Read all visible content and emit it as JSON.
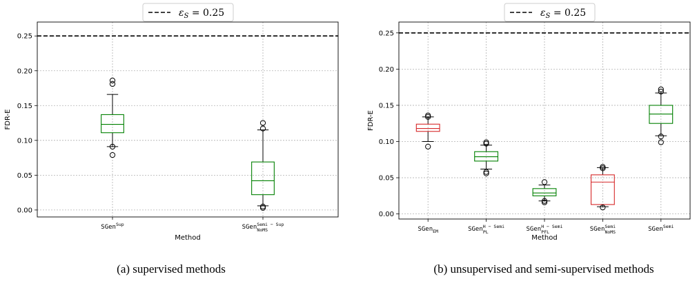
{
  "chart_data": [
    {
      "type": "box",
      "ylabel": "FDR-E",
      "xlabel": "Method",
      "ylim": [
        -0.01,
        0.27
      ],
      "yticks": [
        "0.00",
        "0.05",
        "0.10",
        "0.15",
        "0.20",
        "0.25"
      ],
      "ytick_values": [
        0,
        0.05,
        0.1,
        0.15,
        0.2,
        0.25
      ],
      "grid": true,
      "reference_line": {
        "y": 0.25,
        "style": "dashed",
        "color": "#000000"
      },
      "legend": {
        "placement": "top-center",
        "line_style": "dashed",
        "label_symbol": "ε",
        "label_sub": "S",
        "label_value": " = 0.25"
      },
      "caption": "(a)  supervised methods",
      "categories": [
        {
          "base": "SGen",
          "sup": "Sup",
          "sub": ""
        },
        {
          "base": "SGen",
          "sup": "Semi − Sup",
          "sub": "NoMS"
        }
      ],
      "boxes": [
        {
          "whislo": 0.091,
          "q1": 0.111,
          "med": 0.123,
          "q3": 0.137,
          "whishi": 0.166,
          "fliers": [
            0.186,
            0.181,
            0.079,
            0.091
          ],
          "color": "#008000"
        },
        {
          "whislo": 0.006,
          "q1": 0.022,
          "med": 0.042,
          "q3": 0.069,
          "whishi": 0.115,
          "fliers": [
            0.125,
            0.117,
            0.005,
            0.003
          ],
          "color": "#008000"
        }
      ]
    },
    {
      "type": "box",
      "ylabel": "FDR-E",
      "xlabel": "Method",
      "ylim": [
        -0.007,
        0.265
      ],
      "yticks": [
        "0.00",
        "0.05",
        "0.10",
        "0.15",
        "0.20",
        "0.25"
      ],
      "ytick_values": [
        0,
        0.05,
        0.1,
        0.15,
        0.2,
        0.25
      ],
      "grid": true,
      "reference_line": {
        "y": 0.25,
        "style": "dashed",
        "color": "#000000"
      },
      "legend": {
        "placement": "top-center",
        "line_style": "dashed",
        "label_symbol": "ε",
        "label_sub": "S",
        "label_value": " = 0.25"
      },
      "caption": "(b)  unsupervised and semi-supervised methods",
      "categories": [
        {
          "base": "SGen",
          "sup": "",
          "sub": "EM"
        },
        {
          "base": "SGen",
          "sup": "H − Semi",
          "sub": "PL"
        },
        {
          "base": "SGen",
          "sup": "H − Semi",
          "sub": "PFL"
        },
        {
          "base": "SGen",
          "sup": "Semi",
          "sub": "NoMS"
        },
        {
          "base": "SGen",
          "sup": "Semi",
          "sub": ""
        }
      ],
      "boxes": [
        {
          "whislo": 0.1,
          "q1": 0.114,
          "med": 0.118,
          "q3": 0.124,
          "whishi": 0.134,
          "fliers": [
            0.136,
            0.134,
            0.093
          ],
          "color": "#d62728"
        },
        {
          "whislo": 0.062,
          "q1": 0.073,
          "med": 0.079,
          "q3": 0.086,
          "whishi": 0.095,
          "fliers": [
            0.099,
            0.097,
            0.058,
            0.056
          ],
          "color": "#008000"
        },
        {
          "whislo": 0.018,
          "q1": 0.025,
          "med": 0.029,
          "q3": 0.035,
          "whishi": 0.04,
          "fliers": [
            0.044,
            0.018,
            0.016
          ],
          "color": "#008000"
        },
        {
          "whislo": 0.01,
          "q1": 0.013,
          "med": 0.044,
          "q3": 0.054,
          "whishi": 0.064,
          "fliers": [
            0.065,
            0.063,
            0.009
          ],
          "color": "#d62728"
        },
        {
          "whislo": 0.108,
          "q1": 0.125,
          "med": 0.138,
          "q3": 0.15,
          "whishi": 0.167,
          "fliers": [
            0.172,
            0.169,
            0.107,
            0.099
          ],
          "color": "#008000"
        }
      ]
    }
  ]
}
